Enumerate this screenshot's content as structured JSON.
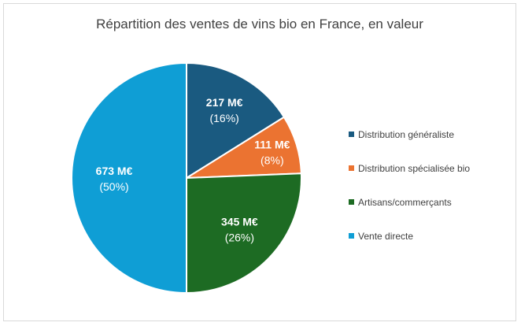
{
  "chart_data": {
    "type": "pie",
    "title": "Répartition des ventes de vins bio en France, en valeur",
    "legend_position": "right",
    "slices": [
      {
        "name": "Distribution généraliste",
        "value": 217,
        "value_label": "217 M€",
        "percent_label": "(16%)",
        "color": "#1a5a80"
      },
      {
        "name": "Distribution spécialisée bio",
        "value": 111,
        "value_label": "111 M€",
        "percent_label": "(8%)",
        "color": "#eb7331"
      },
      {
        "name": "Artisans/commerçants",
        "value": 345,
        "value_label": "345 M€",
        "percent_label": "(26%)",
        "color": "#1d6b23"
      },
      {
        "name": "Vente directe",
        "value": 673,
        "value_label": "673 M€",
        "percent_label": "(50%)",
        "color": "#0f9ed5"
      }
    ]
  }
}
